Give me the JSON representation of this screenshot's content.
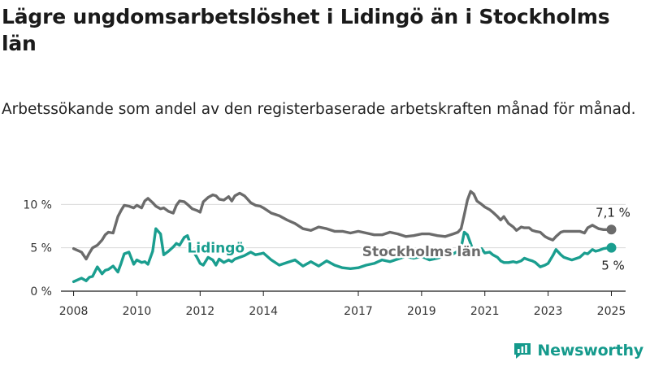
{
  "title": "Lägre ungdomsarbetslöshet i Lidingö än i Stockholms län",
  "subtitle": "Arbetssökande som andel av den registerbaserade arbetskraften månad för månad.",
  "brand": {
    "name": "Newsworthy",
    "icon": "newsworthy-logo-icon"
  },
  "colors": {
    "stockholm": "#6b6b6b",
    "lidingo": "#1a9e8f",
    "grid": "#d9d9d9",
    "axis": "#1a1a1a"
  },
  "chart_data": {
    "type": "line",
    "title": "Lägre ungdomsarbetslöshet i Lidingö än i Stockholms län",
    "subtitle": "Arbetssökande som andel av den registerbaserade arbetskraften månad för månad.",
    "xlabel": "",
    "ylabel": "",
    "x_unit": "year (decimal)",
    "xlim": [
      2007.6,
      2025.45
    ],
    "xticks": [
      2008,
      2010,
      2012,
      2014,
      2017,
      2019,
      2021,
      2023,
      2025
    ],
    "ylim": [
      0,
      12
    ],
    "yticks": [
      {
        "value": 0,
        "label": "0 %"
      },
      {
        "value": 5,
        "label": "5 %"
      },
      {
        "value": 10,
        "label": "10 %"
      }
    ],
    "grid": "horizontal",
    "legend": "inline labels",
    "series": [
      {
        "name": "Stockholms län",
        "end_label": "7,1 %",
        "x": [
          2008.0,
          2008.25,
          2008.4,
          2008.5,
          2008.6,
          2008.75,
          2008.9,
          2009.0,
          2009.1,
          2009.25,
          2009.4,
          2009.5,
          2009.6,
          2009.75,
          2009.9,
          2010.0,
          2010.15,
          2010.25,
          2010.35,
          2010.5,
          2010.6,
          2010.75,
          2010.85,
          2011.0,
          2011.15,
          2011.25,
          2011.35,
          2011.5,
          2011.6,
          2011.75,
          2011.9,
          2012.0,
          2012.1,
          2012.25,
          2012.4,
          2012.5,
          2012.6,
          2012.75,
          2012.9,
          2013.0,
          2013.1,
          2013.25,
          2013.4,
          2013.5,
          2013.6,
          2013.75,
          2013.9,
          2014.0,
          2014.25,
          2014.5,
          2014.75,
          2015.0,
          2015.25,
          2015.5,
          2015.75,
          2016.0,
          2016.25,
          2016.5,
          2016.75,
          2017.0,
          2017.25,
          2017.5,
          2017.75,
          2018.0,
          2018.25,
          2018.5,
          2018.75,
          2019.0,
          2019.25,
          2019.5,
          2019.75,
          2020.0,
          2020.15,
          2020.25,
          2020.35,
          2020.45,
          2020.55,
          2020.65,
          2020.75,
          2020.9,
          2021.0,
          2021.15,
          2021.25,
          2021.4,
          2021.5,
          2021.6,
          2021.75,
          2021.9,
          2022.0,
          2022.15,
          2022.25,
          2022.4,
          2022.5,
          2022.6,
          2022.75,
          2022.9,
          2023.0,
          2023.15,
          2023.25,
          2023.4,
          2023.5,
          2023.75,
          2024.0,
          2024.15,
          2024.25,
          2024.4,
          2024.5,
          2024.6,
          2024.75,
          2024.9,
          2025.0
        ],
        "y": [
          4.9,
          4.5,
          3.7,
          4.4,
          5.0,
          5.3,
          5.9,
          6.5,
          6.8,
          6.7,
          8.6,
          9.3,
          9.9,
          9.8,
          9.6,
          9.9,
          9.6,
          10.4,
          10.7,
          10.2,
          9.8,
          9.5,
          9.6,
          9.2,
          9.0,
          9.9,
          10.4,
          10.3,
          10.0,
          9.5,
          9.3,
          9.1,
          10.3,
          10.8,
          11.1,
          11.0,
          10.6,
          10.5,
          10.9,
          10.4,
          11.0,
          11.3,
          11.0,
          10.6,
          10.2,
          9.9,
          9.8,
          9.6,
          9.0,
          8.7,
          8.2,
          7.8,
          7.2,
          7.0,
          7.4,
          7.2,
          6.9,
          6.9,
          6.7,
          6.9,
          6.7,
          6.5,
          6.5,
          6.8,
          6.6,
          6.3,
          6.4,
          6.6,
          6.6,
          6.4,
          6.3,
          6.6,
          6.8,
          7.2,
          8.8,
          10.5,
          11.5,
          11.2,
          10.4,
          10.0,
          9.7,
          9.4,
          9.1,
          8.6,
          8.2,
          8.6,
          7.8,
          7.4,
          7.0,
          7.4,
          7.3,
          7.3,
          7.0,
          6.9,
          6.8,
          6.3,
          6.1,
          5.9,
          6.3,
          6.8,
          6.9,
          6.9,
          6.9,
          6.7,
          7.3,
          7.6,
          7.4,
          7.2,
          7.1,
          7.1,
          7.1
        ]
      },
      {
        "name": "Lidingö",
        "end_label": "5 %",
        "x": [
          2008.0,
          2008.25,
          2008.4,
          2008.5,
          2008.6,
          2008.75,
          2008.9,
          2009.0,
          2009.1,
          2009.25,
          2009.4,
          2009.5,
          2009.6,
          2009.75,
          2009.9,
          2010.0,
          2010.15,
          2010.25,
          2010.35,
          2010.5,
          2010.6,
          2010.75,
          2010.85,
          2011.0,
          2011.15,
          2011.25,
          2011.35,
          2011.5,
          2011.6,
          2011.75,
          2011.9,
          2012.0,
          2012.1,
          2012.25,
          2012.4,
          2012.5,
          2012.6,
          2012.75,
          2012.9,
          2013.0,
          2013.1,
          2013.25,
          2013.4,
          2013.5,
          2013.6,
          2013.75,
          2013.9,
          2014.0,
          2014.25,
          2014.5,
          2014.75,
          2015.0,
          2015.25,
          2015.5,
          2015.75,
          2016.0,
          2016.25,
          2016.5,
          2016.75,
          2017.0,
          2017.25,
          2017.5,
          2017.75,
          2018.0,
          2018.25,
          2018.5,
          2018.75,
          2019.0,
          2019.25,
          2019.5,
          2019.75,
          2020.0,
          2020.15,
          2020.25,
          2020.35,
          2020.45,
          2020.55,
          2020.65,
          2020.75,
          2020.9,
          2021.0,
          2021.15,
          2021.25,
          2021.4,
          2021.5,
          2021.6,
          2021.75,
          2021.9,
          2022.0,
          2022.15,
          2022.25,
          2022.4,
          2022.5,
          2022.6,
          2022.75,
          2022.9,
          2023.0,
          2023.15,
          2023.25,
          2023.4,
          2023.5,
          2023.75,
          2024.0,
          2024.15,
          2024.25,
          2024.4,
          2024.5,
          2024.6,
          2024.75,
          2024.9,
          2025.0
        ],
        "y": [
          1.1,
          1.5,
          1.2,
          1.6,
          1.7,
          2.8,
          2.0,
          2.4,
          2.5,
          2.9,
          2.2,
          3.2,
          4.3,
          4.5,
          3.1,
          3.6,
          3.3,
          3.4,
          3.1,
          4.6,
          7.2,
          6.6,
          4.2,
          4.6,
          5.1,
          5.5,
          5.3,
          6.2,
          6.4,
          4.8,
          3.9,
          3.2,
          3.0,
          3.9,
          3.6,
          3.0,
          3.7,
          3.3,
          3.6,
          3.4,
          3.7,
          3.9,
          4.1,
          4.3,
          4.5,
          4.2,
          4.3,
          4.4,
          3.6,
          3.0,
          3.3,
          3.6,
          2.9,
          3.4,
          2.9,
          3.5,
          3.0,
          2.7,
          2.6,
          2.7,
          3.0,
          3.2,
          3.6,
          3.4,
          3.7,
          4.0,
          3.8,
          4.0,
          3.6,
          3.8,
          4.1,
          4.3,
          4.6,
          5.0,
          6.8,
          6.5,
          5.5,
          4.4,
          4.5,
          4.9,
          4.4,
          4.5,
          4.2,
          3.9,
          3.5,
          3.3,
          3.3,
          3.4,
          3.3,
          3.5,
          3.8,
          3.6,
          3.5,
          3.3,
          2.8,
          3.0,
          3.2,
          4.1,
          4.8,
          4.2,
          3.9,
          3.6,
          3.9,
          4.4,
          4.3,
          4.8,
          4.6,
          4.7,
          4.9,
          5.0,
          5.0
        ]
      }
    ]
  }
}
